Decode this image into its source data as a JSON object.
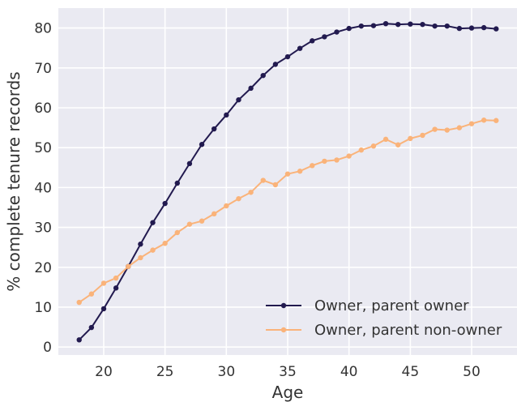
{
  "chart_data": {
    "type": "line",
    "xlabel": "Age",
    "ylabel": "% complete tenure records",
    "xlim": [
      16.3,
      53.7
    ],
    "ylim": [
      -2,
      85
    ],
    "xticks": [
      20,
      25,
      30,
      35,
      40,
      45,
      50
    ],
    "yticks": [
      0,
      10,
      20,
      30,
      40,
      50,
      60,
      70,
      80
    ],
    "grid": true,
    "legend_position": "bottom-right",
    "x": [
      18,
      19,
      20,
      21,
      22,
      23,
      24,
      25,
      26,
      27,
      28,
      29,
      30,
      31,
      32,
      33,
      34,
      35,
      36,
      37,
      38,
      39,
      40,
      41,
      42,
      43,
      44,
      45,
      46,
      47,
      48,
      49,
      50,
      51,
      52
    ],
    "series": [
      {
        "name": "Owner, parent owner",
        "color": "#221a4f",
        "values": [
          1.8,
          4.9,
          9.6,
          14.8,
          20.2,
          25.8,
          31.2,
          36.0,
          41.1,
          46.0,
          50.8,
          54.7,
          58.2,
          62.0,
          64.9,
          68.1,
          70.9,
          72.8,
          74.9,
          76.8,
          77.8,
          79.0,
          79.9,
          80.5,
          80.6,
          81.1,
          80.9,
          81.0,
          80.9,
          80.5,
          80.5,
          79.9,
          80.0,
          80.1,
          79.8
        ]
      },
      {
        "name": "Owner, parent non-owner",
        "color": "#fab37a",
        "values": [
          11.2,
          13.3,
          16.0,
          17.3,
          20.2,
          22.4,
          24.3,
          26.0,
          28.7,
          30.8,
          31.6,
          33.4,
          35.4,
          37.2,
          38.8,
          41.8,
          40.7,
          43.4,
          44.1,
          45.5,
          46.6,
          46.9,
          47.9,
          49.4,
          50.4,
          52.1,
          50.7,
          52.3,
          53.1,
          54.6,
          54.4,
          55.0,
          56.0,
          56.9,
          56.8
        ]
      }
    ]
  }
}
